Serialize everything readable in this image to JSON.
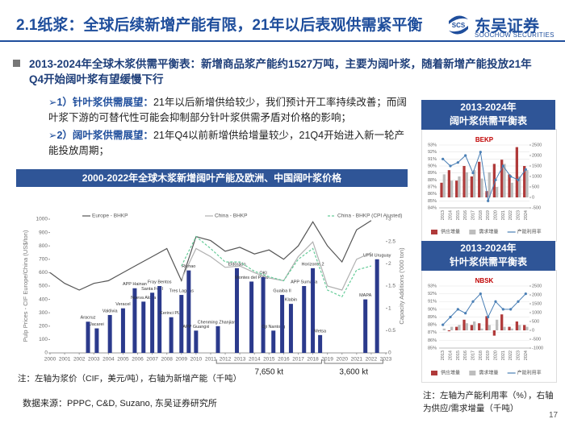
{
  "header": {
    "title": "2.1纸浆：全球后续新增产能有限，21年以后表观供需紧平衡",
    "logo_mark": "SCS",
    "logo_name": "东吴证券",
    "logo_en": "SOOCHOW SECURITIES"
  },
  "summary": "2013-2024年全球木浆供需平衡表：新增商品浆产能约1527万吨，主要为阔叶浆，随着新增产能投放21年Q4开始阔叶浆有望缓慢下行",
  "bullets": [
    {
      "label": "➢1）针叶浆供需展望：",
      "text": "21年以后新增供给较少，我们预计开工率持续改善；而阔叶浆下游的可替代性可能会抑制部分针叶浆供需矛盾对价格的影响；"
    },
    {
      "label": "➢2）阔叶浆供需展望：",
      "text": "21年Q4以前新增供给增量较少，21Q4开始进入新一轮产能投放周期；"
    }
  ],
  "main_banner": "2000-2022年全球木浆新增阔叶产能及欧洲、中国阔叶浆价格",
  "side_titles": [
    [
      "2013-2024年",
      "阔叶浆供需平衡表"
    ],
    [
      "2013-2024年",
      "针叶浆供需平衡表"
    ]
  ],
  "main_note": "注：左轴为浆价（CIF，美元/吨），右轴为新增产能（千吨）",
  "brackets": [
    "7,650 kt",
    "3,600 kt"
  ],
  "source": "数据来源：PPPC, C&D, Suzano, 东吴证券研究所",
  "side_note": "注：左轴为产能利用率（%），右轴为供应/需求增量（千吨）",
  "page_number": "17",
  "chart_data": [
    {
      "type": "line",
      "ylabel": "Pulp Prices - CIF Europe/China (US$/ton)",
      "y2label": "Capacity Additions ('000 ton)",
      "legend": "top",
      "grid": false,
      "x": [
        2000,
        2001,
        2002,
        2003,
        2004,
        2005,
        2006,
        2007,
        2008,
        2009,
        2010,
        2011,
        2012,
        2013,
        2014,
        2015,
        2016,
        2017,
        2018,
        2019,
        2020,
        2021,
        2022
      ],
      "xlim": [
        2000,
        2023
      ],
      "xticks": [
        2000,
        2001,
        2002,
        2003,
        2004,
        2005,
        2006,
        2007,
        2008,
        2009,
        2010,
        2011,
        2012,
        2013,
        2014,
        2015,
        2016,
        2017,
        2018,
        2019,
        2020,
        2021,
        2022,
        2023
      ],
      "ylim": [
        0,
        1000
      ],
      "yticks": [
        0,
        100,
        200,
        300,
        400,
        500,
        600,
        700,
        800,
        900,
        1000
      ],
      "y2lim": [
        0,
        3
      ],
      "y2ticks": [
        0,
        0.5,
        1,
        1.5,
        2,
        2.5,
        3
      ],
      "series": [
        {
          "name": "Europe - BHKP",
          "color": "#555555",
          "values": [
            600,
            520,
            470,
            520,
            540,
            600,
            660,
            720,
            780,
            540,
            870,
            840,
            760,
            790,
            740,
            770,
            700,
            800,
            980,
            800,
            680,
            920,
            990
          ]
        },
        {
          "name": "China - BHKP",
          "color": "#b0b0b0",
          "values": [
            null,
            null,
            null,
            null,
            null,
            null,
            null,
            null,
            null,
            550,
            780,
            720,
            640,
            650,
            600,
            560,
            540,
            720,
            830,
            500,
            470,
            700,
            750
          ]
        },
        {
          "name": "China - BHKP (CPI Ajusted)",
          "color": "#66cc99",
          "dash": true,
          "values": [
            null,
            null,
            null,
            null,
            null,
            null,
            null,
            null,
            null,
            650,
            870,
            780,
            680,
            680,
            610,
            570,
            540,
            700,
            780,
            470,
            420,
            620,
            650
          ]
        },
        {
          "name": "Capacity Additions",
          "type": "bar",
          "axis": "y2",
          "color": "#2b3a8c",
          "legend": false,
          "x": [
            2002.6,
            2003.2,
            2004.1,
            2005.0,
            2005.8,
            2006.4,
            2007.0,
            2007.5,
            2008.3,
            2009.0,
            2009.5,
            2010.0,
            2011.5,
            2012.8,
            2013.8,
            2014.6,
            2015.3,
            2015.9,
            2016.5,
            2017.4,
            2018.0,
            2018.5,
            2021.6,
            2022.4
          ],
          "values": [
            0.7,
            0.55,
            0.85,
            1.0,
            1.45,
            1.15,
            1.35,
            1.5,
            0.8,
            1.3,
            1.85,
            0.5,
            0.6,
            1.9,
            1.6,
            1.7,
            0.5,
            1.3,
            1.1,
            1.5,
            1.9,
            0.4,
            1.2,
            2.1
          ],
          "labels": [
            "Aracruz",
            "Jacarei",
            "Valdivia",
            "Veracel",
            "APP Hainan",
            "Nueva Aldea",
            "Santa Fe II",
            "Fray Bentos",
            "Kerinci PL3",
            "Tres Lagoas",
            "Rizhao",
            "APP Guangxi",
            "Chenming Zhanjiang",
            "Eldorado",
            "Montes del Plata",
            "OKI",
            "Oji Nantong",
            "Guaiba II",
            "Klabin",
            "APP Sumatra",
            "Horizonte 2",
            "Metsa",
            "MAPA",
            "UPM Uruguay"
          ]
        }
      ]
    },
    {
      "type": "bar",
      "title": "BEKP",
      "title_color": "#c00000",
      "legend": "bottom",
      "grid": true,
      "categories": [
        "2013",
        "2014",
        "2015",
        "2016",
        "2017",
        "2018",
        "2019",
        "2020",
        "2021",
        "2022",
        "2023",
        "2024"
      ],
      "ylim": [
        84,
        93
      ],
      "yticks": [
        {
          "value": 84,
          "label": "84%"
        },
        {
          "value": 85,
          "label": "85%"
        },
        {
          "value": 86,
          "label": "86%"
        },
        {
          "value": 87,
          "label": "87%"
        },
        {
          "value": 88,
          "label": "88%"
        },
        {
          "value": 89,
          "label": "89%"
        },
        {
          "value": 90,
          "label": "90%"
        },
        {
          "value": 91,
          "label": "91%"
        },
        {
          "value": 92,
          "label": "92%"
        },
        {
          "value": 93,
          "label": "93%"
        }
      ],
      "y2lim": [
        -500,
        2500
      ],
      "y2ticks": [
        -500,
        0,
        500,
        1000,
        1500,
        2000,
        2500
      ],
      "series": [
        {
          "name": "供应增量",
          "type": "bar",
          "axis": "y2",
          "color": "#b03a3a",
          "values": [
            700,
            1300,
            800,
            1500,
            1000,
            1700,
            300,
            1600,
            1800,
            1100,
            2400,
            1500
          ]
        },
        {
          "name": "需求增量",
          "type": "bar",
          "axis": "y2",
          "color": "#bdbdbd",
          "values": [
            1100,
            800,
            1000,
            1200,
            1300,
            900,
            1200,
            500,
            1600,
            700,
            1000,
            1300
          ]
        },
        {
          "name": "产能利用率",
          "type": "line",
          "color": "#4a7fb5",
          "values": [
            91,
            90,
            90.5,
            91.5,
            89,
            92,
            85,
            88,
            90,
            88.5,
            88,
            89.5
          ]
        }
      ]
    },
    {
      "type": "bar",
      "title": "NBSK",
      "title_color": "#c00000",
      "legend": "bottom",
      "grid": true,
      "categories": [
        "2013",
        "2014",
        "2015",
        "2016",
        "2017",
        "2018",
        "2019",
        "2020",
        "2021",
        "2022",
        "2023",
        "2024"
      ],
      "ylim": [
        85,
        93
      ],
      "yticks": [
        {
          "value": 85,
          "label": "85%"
        },
        {
          "value": 86,
          "label": "86%"
        },
        {
          "value": 87,
          "label": "87%"
        },
        {
          "value": 88,
          "label": "88%"
        },
        {
          "value": 89,
          "label": "89%"
        },
        {
          "value": 90,
          "label": "90%"
        },
        {
          "value": 91,
          "label": "91%"
        },
        {
          "value": 92,
          "label": "92%"
        },
        {
          "value": 93,
          "label": "93%"
        }
      ],
      "y2lim": [
        -1000,
        2500
      ],
      "y2ticks": [
        -1000,
        -500,
        0,
        500,
        1000,
        1500,
        2000,
        2500
      ],
      "series": [
        {
          "name": "供应增量",
          "type": "bar",
          "axis": "y2",
          "color": "#b03a3a",
          "values": [
            0,
            -50,
            200,
            600,
            300,
            400,
            800,
            -300,
            900,
            200,
            500,
            300
          ]
        },
        {
          "name": "需求增量",
          "type": "bar",
          "axis": "y2",
          "color": "#bdbdbd",
          "values": [
            100,
            200,
            300,
            400,
            500,
            100,
            300,
            600,
            200,
            100,
            300,
            200
          ]
        },
        {
          "name": "产能利用率",
          "type": "line",
          "color": "#4a7fb5",
          "values": [
            88,
            89,
            90,
            89.5,
            91,
            92,
            89,
            91,
            90,
            90,
            91,
            92
          ]
        }
      ]
    }
  ]
}
